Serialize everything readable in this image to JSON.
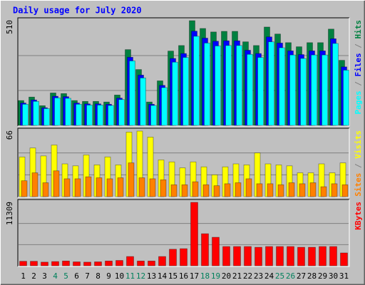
{
  "chart_data": [
    {
      "type": "bar",
      "title": "Daily usage for July 2020",
      "ylim": [
        0,
        510
      ],
      "yticks": [
        510
      ],
      "legend_separator": " / ",
      "series": [
        {
          "name": "Hits",
          "color": "#008040",
          "values": [
            121,
            138,
            96,
            158,
            155,
            121,
            117,
            117,
            114,
            148,
            369,
            272,
            114,
            217,
            362,
            389,
            510,
            472,
            455,
            458,
            458,
            407,
            389,
            479,
            445,
            403,
            383,
            403,
            403,
            469,
            317
          ]
        },
        {
          "name": "Files",
          "color": "#0000ff",
          "values": [
            109,
            124,
            86,
            142,
            140,
            109,
            105,
            105,
            103,
            133,
            332,
            245,
            103,
            195,
            326,
            350,
            459,
            425,
            410,
            412,
            412,
            366,
            350,
            431,
            401,
            363,
            345,
            363,
            363,
            422,
            285
          ]
        },
        {
          "name": "Pages",
          "color": "#00ffff",
          "values": [
            103,
            117,
            82,
            134,
            132,
            103,
            99,
            99,
            97,
            126,
            314,
            231,
            97,
            184,
            308,
            331,
            434,
            401,
            387,
            389,
            389,
            346,
            331,
            407,
            378,
            343,
            326,
            343,
            343,
            399,
            269
          ]
        }
      ]
    },
    {
      "type": "bar",
      "ylim": [
        0,
        66
      ],
      "yticks": [
        66
      ],
      "series": [
        {
          "name": "Visits",
          "color": "#ffff00",
          "values": [
            40,
            49,
            41,
            52,
            33,
            31,
            42,
            32,
            40,
            32,
            65,
            66,
            60,
            37,
            35,
            29,
            35,
            30,
            22,
            30,
            33,
            32,
            44,
            33,
            32,
            31,
            24,
            24,
            33,
            24,
            34
          ]
        },
        {
          "name": "Sites",
          "color": "#ff8000",
          "values": [
            16,
            24,
            14,
            26,
            18,
            18,
            20,
            19,
            18,
            19,
            34,
            19,
            18,
            17,
            12,
            12,
            15,
            12,
            11,
            13,
            14,
            18,
            13,
            13,
            12,
            14,
            13,
            14,
            10,
            13,
            12
          ]
        }
      ]
    },
    {
      "type": "bar",
      "ylim": [
        0,
        11309
      ],
      "yticks": [
        11309
      ],
      "categories": [
        "1",
        "2",
        "3",
        "4",
        "5",
        "6",
        "7",
        "8",
        "9",
        "10",
        "11",
        "12",
        "13",
        "14",
        "15",
        "16",
        "17",
        "18",
        "19",
        "20",
        "21",
        "22",
        "23",
        "24",
        "25",
        "26",
        "27",
        "28",
        "29",
        "30",
        "31"
      ],
      "weekends": [
        3,
        4,
        10,
        11,
        17,
        18,
        24,
        25
      ],
      "weekend_color": "#00805c",
      "series": [
        {
          "name": "KBytes",
          "color": "#ff0000",
          "values": [
            800,
            800,
            650,
            750,
            850,
            700,
            650,
            700,
            850,
            950,
            1650,
            850,
            850,
            1650,
            2950,
            3050,
            11309,
            5718,
            5083,
            3430,
            3430,
            3430,
            3300,
            3430,
            3430,
            3430,
            3300,
            3300,
            3430,
            3430,
            2290
          ]
        }
      ]
    }
  ]
}
